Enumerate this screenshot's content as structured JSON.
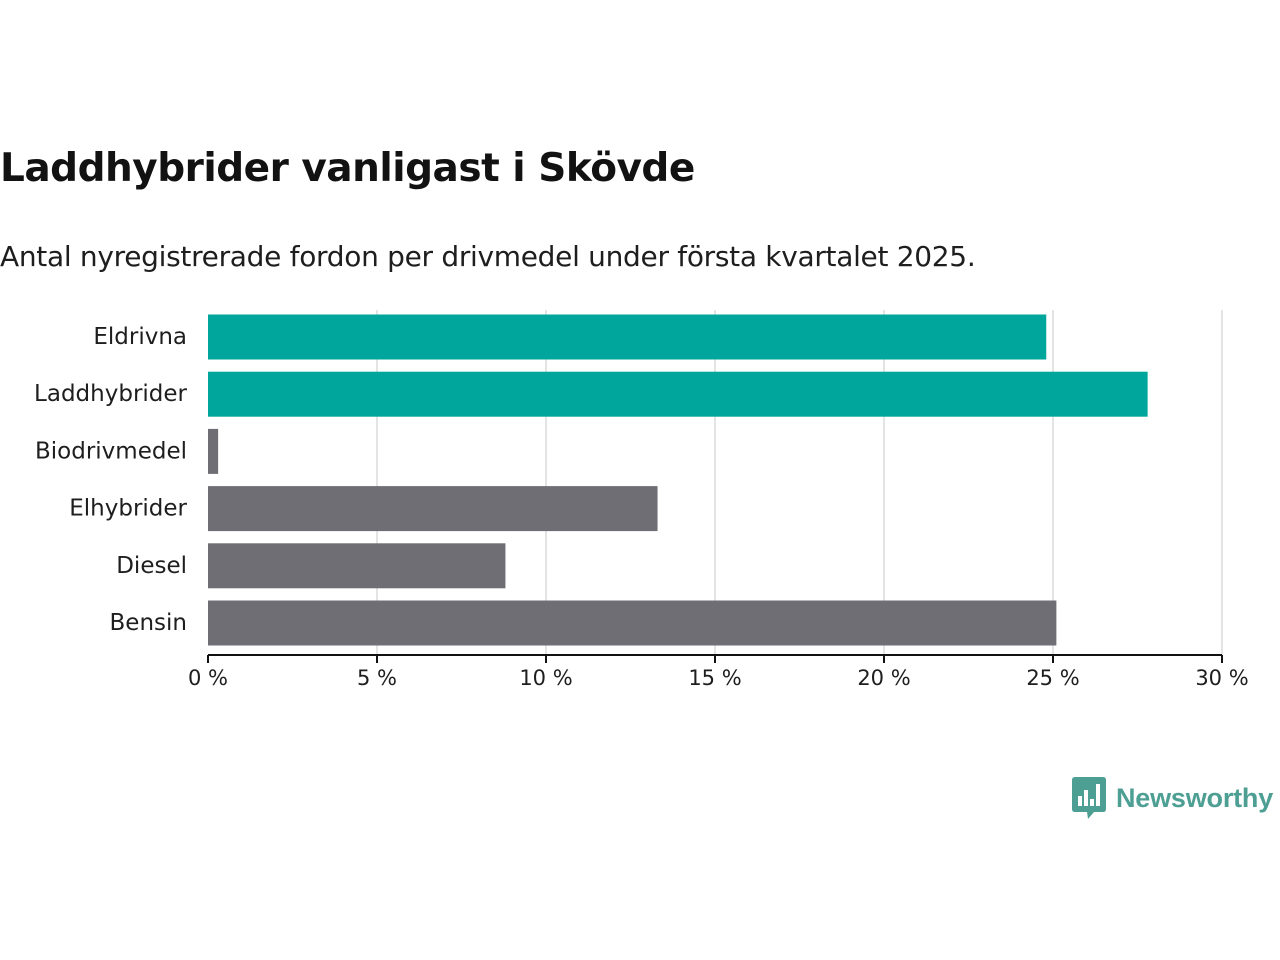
{
  "chart_data": {
    "type": "bar",
    "orientation": "horizontal",
    "title": "Laddhybrider vanligast i Skövde",
    "subtitle": "Antal nyregistrerade fordon per drivmedel under första kvartalet 2025.",
    "categories": [
      "Eldrivna",
      "Laddhybrider",
      "Biodrivmedel",
      "Elhybrider",
      "Diesel",
      "Bensin"
    ],
    "values": [
      24.8,
      27.8,
      0.3,
      13.3,
      8.8,
      25.1
    ],
    "unit": "%",
    "highlight": [
      true,
      true,
      false,
      false,
      false,
      false
    ],
    "xlim": [
      0,
      30
    ],
    "xticks": [
      0,
      5,
      10,
      15,
      20,
      25,
      30
    ],
    "xtick_labels": [
      "0 %",
      "5 %",
      "10 %",
      "15 %",
      "20 %",
      "25 %",
      "30 %"
    ],
    "grid": true,
    "colors": {
      "highlight": "#00a59b",
      "default": "#6f6e75",
      "grid": "#dcdcdc",
      "axis": "#121212"
    }
  },
  "brand": {
    "name": "Newsworthy",
    "logo_icon": "bar-chart-speech-bubble-icon",
    "color": "#4d9f94"
  }
}
